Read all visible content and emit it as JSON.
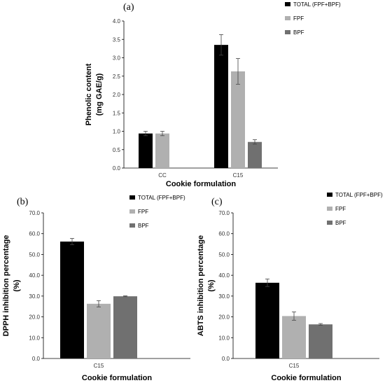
{
  "chart_data": [
    {
      "type": "bar",
      "panel_label": "(a)",
      "categories": [
        "CC",
        "C15"
      ],
      "series": [
        {
          "name": "TOTAL (FPF+BPF)",
          "color": "#000000",
          "values": [
            0.94,
            3.35
          ],
          "errors": [
            0.06,
            0.28
          ]
        },
        {
          "name": "FPF",
          "color": "#b0b0b0",
          "values": [
            0.94,
            2.63
          ],
          "errors": [
            0.06,
            0.35
          ]
        },
        {
          "name": "BPF",
          "color": "#707070",
          "values": [
            null,
            0.71
          ],
          "errors": [
            null,
            0.06
          ]
        }
      ],
      "xlabel": "Cookie formulation",
      "ylabel_lines": [
        "Phenolic content",
        "(mg GAE/g)"
      ],
      "ylim": [
        0,
        4.0
      ],
      "yticks": [
        "0.0",
        "0.5",
        "1.0",
        "1.5",
        "2.0",
        "2.5",
        "3.0",
        "3.5",
        "4.0"
      ],
      "legend_position": "top-right"
    },
    {
      "type": "bar",
      "panel_label": "(b)",
      "categories": [
        "C15"
      ],
      "series": [
        {
          "name": "TOTAL (FPF+BPF)",
          "color": "#000000",
          "values": [
            56.2
          ],
          "errors": [
            1.5
          ]
        },
        {
          "name": "FPF",
          "color": "#b0b0b0",
          "values": [
            26.3
          ],
          "errors": [
            1.5
          ]
        },
        {
          "name": "BPF",
          "color": "#707070",
          "values": [
            29.9
          ],
          "errors": [
            0.2
          ]
        }
      ],
      "xlabel": "Cookie formulation",
      "ylabel_lines": [
        "DPPH inhibition percentage",
        "(%)"
      ],
      "ylim": [
        0,
        70
      ],
      "yticks": [
        "0.0",
        "10.0",
        "20.0",
        "30.0",
        "40.0",
        "50.0",
        "60.0",
        "70.0"
      ],
      "legend_position": "top-right"
    },
    {
      "type": "bar",
      "panel_label": "(c)",
      "categories": [
        "C15"
      ],
      "series": [
        {
          "name": "TOTAL (FPF+BPF)",
          "color": "#000000",
          "values": [
            36.4
          ],
          "errors": [
            1.8
          ]
        },
        {
          "name": "FPF",
          "color": "#b0b0b0",
          "values": [
            20.4
          ],
          "errors": [
            2.0
          ]
        },
        {
          "name": "BPF",
          "color": "#707070",
          "values": [
            16.4
          ],
          "errors": [
            0.4
          ]
        }
      ],
      "xlabel": "Cookie formulation",
      "ylabel_lines": [
        "ABTS  inhibition percentage",
        "(%)"
      ],
      "ylim": [
        0,
        70
      ],
      "yticks": [
        "0.0",
        "10.0",
        "20.0",
        "30.0",
        "40.0",
        "50.0",
        "60.0",
        "70.0"
      ],
      "legend_position": "top-right"
    }
  ]
}
